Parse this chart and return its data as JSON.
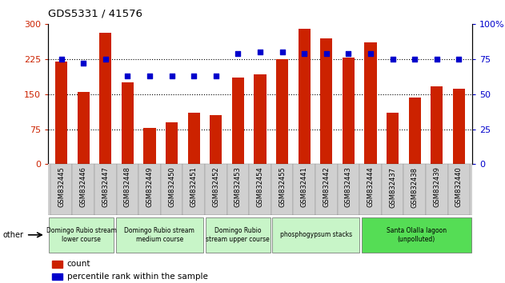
{
  "title": "GDS5331 / 41576",
  "samples": [
    "GSM832445",
    "GSM832446",
    "GSM832447",
    "GSM832448",
    "GSM832449",
    "GSM832450",
    "GSM832451",
    "GSM832452",
    "GSM832453",
    "GSM832454",
    "GSM832455",
    "GSM832441",
    "GSM832442",
    "GSM832443",
    "GSM832444",
    "GSM832437",
    "GSM832438",
    "GSM832439",
    "GSM832440"
  ],
  "counts": [
    220,
    155,
    282,
    175,
    78,
    90,
    110,
    105,
    185,
    192,
    225,
    290,
    270,
    228,
    260,
    110,
    143,
    167,
    162
  ],
  "percentiles": [
    75,
    72,
    75,
    63,
    63,
    63,
    63,
    63,
    79,
    80,
    80,
    79,
    79,
    79,
    79,
    75,
    75,
    75,
    75
  ],
  "groups": [
    {
      "label": "Domingo Rubio stream\nlower course",
      "start": 0,
      "end": 3,
      "color": "#c8f5c8"
    },
    {
      "label": "Domingo Rubio stream\nmedium course",
      "start": 3,
      "end": 7,
      "color": "#c8f5c8"
    },
    {
      "label": "Domingo Rubio\nstream upper course",
      "start": 7,
      "end": 10,
      "color": "#c8f5c8"
    },
    {
      "label": "phosphogypsum stacks",
      "start": 10,
      "end": 14,
      "color": "#c8f5c8"
    },
    {
      "label": "Santa Olalla lagoon\n(unpolluted)",
      "start": 14,
      "end": 19,
      "color": "#55dd55"
    }
  ],
  "bar_color": "#cc2200",
  "dot_color": "#0000cc",
  "ylim_left": [
    0,
    300
  ],
  "ylim_right": [
    0,
    100
  ],
  "yticks_left": [
    0,
    75,
    150,
    225,
    300
  ],
  "yticks_right": [
    0,
    25,
    50,
    75,
    100
  ],
  "grid_values": [
    75,
    150,
    225
  ],
  "tick_bg_color": "#d0d0d0",
  "plot_bg": "#ffffff"
}
